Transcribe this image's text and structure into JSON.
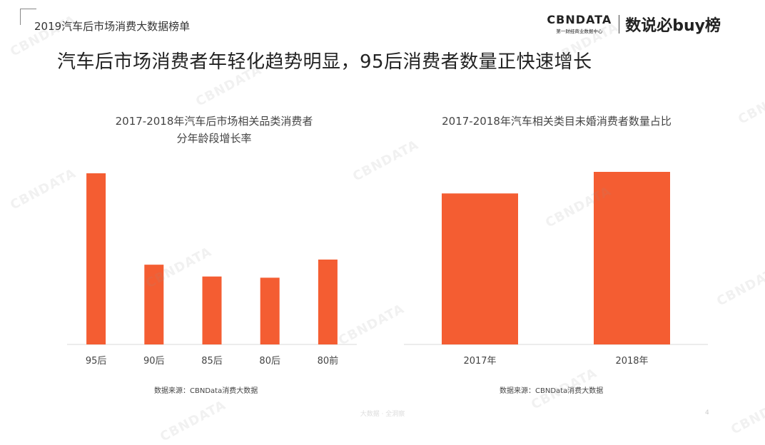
{
  "header": {
    "report_title": "2019汽车后市场消费大数据榜单",
    "brand_cbn": "CBNDATA",
    "brand_cbn_sub": "第一财经商业数据中心",
    "brand_buy": "数说必buy榜"
  },
  "headline": "汽车后市场消费者年轻化趋势明显，95后消费者数量正快速增长",
  "watermark_text": "CBNDATA",
  "colors": {
    "bar": "#F45D32",
    "axis": "#D9D9D9"
  },
  "chart_data": [
    {
      "type": "bar",
      "title": "2017-2018年汽车后市场相关品类消费者\n分年龄段增长率",
      "categories": [
        "95后",
        "90后",
        "85后",
        "80后",
        "80前"
      ],
      "values": [
        1.0,
        0.466,
        0.397,
        0.39,
        0.496
      ],
      "ylim": [
        0,
        1.0
      ],
      "grid": false,
      "source": "数据来源：CBNData消费大数据"
    },
    {
      "type": "bar",
      "title": "2017-2018年汽车相关类目未婚消费者数量占比",
      "categories": [
        "2017年",
        "2018年"
      ],
      "values": [
        0.875,
        1.0
      ],
      "ylim": [
        0,
        1.0
      ],
      "grid": false,
      "source": "数据来源：CBNData消费大数据"
    }
  ],
  "footer": {
    "text": "大数据 · 全洞察",
    "page": "4"
  }
}
